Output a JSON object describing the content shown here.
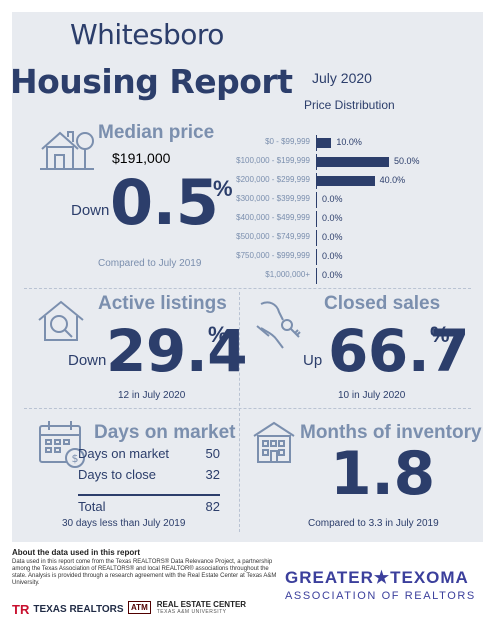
{
  "header": {
    "city": "Whitesboro",
    "report": "Housing Report",
    "month": "July 2020"
  },
  "price_distribution": {
    "title": "Price Distribution",
    "unit": "percent",
    "bars": [
      {
        "label": "$0 - $99,999",
        "value": 10.0,
        "display": "10.0%"
      },
      {
        "label": "$100,000 - $199,999",
        "value": 50.0,
        "display": "50.0%"
      },
      {
        "label": "$200,000 - $299,999",
        "value": 40.0,
        "display": "40.0%"
      },
      {
        "label": "$300,000 - $399,999",
        "value": 0.0,
        "display": "0.0%"
      },
      {
        "label": "$400,000 - $499,999",
        "value": 0.0,
        "display": "0.0%"
      },
      {
        "label": "$500,000 - $749,999",
        "value": 0.0,
        "display": "0.0%"
      },
      {
        "label": "$750,000 - $999,999",
        "value": 0.0,
        "display": "0.0%"
      },
      {
        "label": "$1,000,000+",
        "value": 0.0,
        "display": "0.0%"
      }
    ]
  },
  "median_price": {
    "title": "Median price",
    "value": "$191,000",
    "direction": "Down",
    "change": "0.5",
    "percent": "%",
    "note": "Compared to July 2019",
    "icon": "house-tree-icon"
  },
  "active_listings": {
    "title": "Active listings",
    "direction": "Down",
    "change": "29.4",
    "percent": "%",
    "note": "12 in July 2020",
    "icon": "house-magnifier-icon"
  },
  "closed_sales": {
    "title": "Closed sales",
    "direction": "Up",
    "change": "66.7",
    "percent": "%",
    "note": "10 in July 2020",
    "icon": "hand-keys-icon"
  },
  "days_on_market": {
    "title": "Days on market",
    "rows": [
      {
        "label": "Days on market",
        "value": "50"
      },
      {
        "label": "Days to close",
        "value": "32"
      }
    ],
    "total_label": "Total",
    "total_value": "82",
    "note": "30 days less than July 2019",
    "icon": "calendar-dollar-icon"
  },
  "months_inventory": {
    "title": "Months of inventory",
    "value": "1.8",
    "note": "Compared to 3.3 in July 2019",
    "icon": "building-icon"
  },
  "footer": {
    "about_title": "About the data used in this report",
    "about_text": "Data used in this report come from the Texas REALTORS® Data Relevance Project, a partnership among the Texas Association of REALTORS® and local REALTOR® associations throughout the state. Analysis is provided through a research agreement with the Real Estate Center at Texas A&M University.",
    "logo1_mark": "TR",
    "logo1_text": "TEXAS REALTORS",
    "logo2_mark": "ATM",
    "logo2_text": "REAL ESTATE CENTER",
    "logo2_sub": "TEXAS A&M UNIVERSITY",
    "assoc_line1": "GREATER★TEXOMA",
    "assoc_line2": "ASSOCIATION OF REALTORS"
  },
  "colors": {
    "navy": "#2c3e6b",
    "steel": "#7b8fae",
    "panel": "#e8ebf0",
    "assoc": "#3b3f9c"
  }
}
